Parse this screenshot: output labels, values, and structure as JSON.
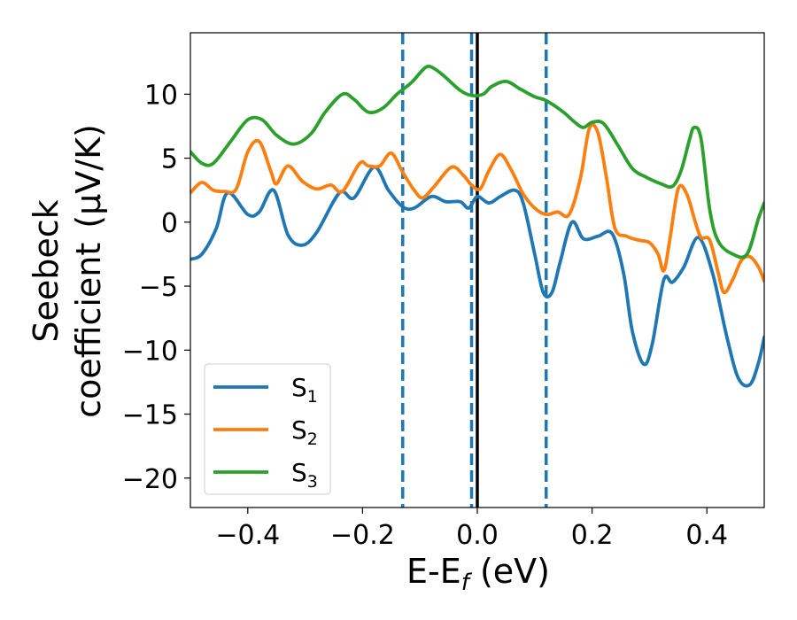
{
  "chart_data": {
    "type": "line",
    "title": "",
    "xlabel": {
      "main": "E-E",
      "sub": "f",
      "unit": " (eV)"
    },
    "ylabel": {
      "line1": "Seebeck",
      "line2": "coefficient",
      "unit": "(μV/K)"
    },
    "xlim": [
      -0.5,
      0.5
    ],
    "ylim": [
      -22.3,
      14.8
    ],
    "xticks": [
      -0.4,
      -0.2,
      0.0,
      0.2,
      0.4
    ],
    "xtick_labels": [
      "−0.4",
      "−0.2",
      "0.0",
      "0.2",
      "0.4"
    ],
    "yticks": [
      10,
      5,
      0,
      -5,
      -10,
      -15,
      -20
    ],
    "ytick_labels": [
      "10",
      "5",
      "0",
      "−5",
      "−10",
      "−15",
      "−20"
    ],
    "grid": false,
    "legend_position": "lower-left",
    "vlines": [
      {
        "x": 0.0,
        "style": "solid",
        "color": "#000000"
      },
      {
        "x": -0.13,
        "style": "dashed",
        "color": "#1f77b4"
      },
      {
        "x": -0.01,
        "style": "dashed",
        "color": "#1f77b4"
      },
      {
        "x": 0.12,
        "style": "dashed",
        "color": "#1f77b4"
      }
    ],
    "series": [
      {
        "name": "S",
        "sub": "1",
        "color": "#1f77b4",
        "points": [
          [
            -0.5,
            -2.9
          ],
          [
            -0.48,
            -2.5
          ],
          [
            -0.455,
            -0.5
          ],
          [
            -0.435,
            2.3
          ],
          [
            -0.4,
            0.6
          ],
          [
            -0.38,
            0.8
          ],
          [
            -0.355,
            2.5
          ],
          [
            -0.33,
            -1.0
          ],
          [
            -0.305,
            -1.8
          ],
          [
            -0.28,
            -0.8
          ],
          [
            -0.24,
            2.3
          ],
          [
            -0.215,
            1.9
          ],
          [
            -0.18,
            4.3
          ],
          [
            -0.155,
            2.5
          ],
          [
            -0.13,
            1.2
          ],
          [
            -0.11,
            1.1
          ],
          [
            -0.08,
            2.0
          ],
          [
            -0.055,
            1.6
          ],
          [
            -0.03,
            1.6
          ],
          [
            -0.015,
            1.1
          ],
          [
            0.0,
            2.0
          ],
          [
            0.02,
            1.5
          ],
          [
            0.04,
            2.0
          ],
          [
            0.065,
            2.5
          ],
          [
            0.08,
            1.5
          ],
          [
            0.1,
            -2.5
          ],
          [
            0.115,
            -5.5
          ],
          [
            0.13,
            -5.5
          ],
          [
            0.145,
            -3.0
          ],
          [
            0.165,
            0.0
          ],
          [
            0.185,
            -1.3
          ],
          [
            0.21,
            -1.1
          ],
          [
            0.235,
            -0.9
          ],
          [
            0.255,
            -4.0
          ],
          [
            0.27,
            -8.5
          ],
          [
            0.29,
            -11.1
          ],
          [
            0.305,
            -9.5
          ],
          [
            0.325,
            -4.5
          ],
          [
            0.34,
            -4.7
          ],
          [
            0.36,
            -3.5
          ],
          [
            0.385,
            -1.2
          ],
          [
            0.41,
            -4.0
          ],
          [
            0.435,
            -9.0
          ],
          [
            0.455,
            -12.2
          ],
          [
            0.475,
            -12.7
          ],
          [
            0.49,
            -11.0
          ],
          [
            0.5,
            -9.0
          ]
        ]
      },
      {
        "name": "S",
        "sub": "2",
        "color": "#ff7f0e",
        "points": [
          [
            -0.5,
            2.3
          ],
          [
            -0.48,
            3.1
          ],
          [
            -0.46,
            2.5
          ],
          [
            -0.44,
            2.4
          ],
          [
            -0.42,
            2.6
          ],
          [
            -0.4,
            5.5
          ],
          [
            -0.38,
            6.3
          ],
          [
            -0.36,
            4.0
          ],
          [
            -0.35,
            3.0
          ],
          [
            -0.33,
            4.4
          ],
          [
            -0.305,
            3.2
          ],
          [
            -0.28,
            2.6
          ],
          [
            -0.255,
            2.9
          ],
          [
            -0.235,
            2.4
          ],
          [
            -0.205,
            4.6
          ],
          [
            -0.19,
            4.4
          ],
          [
            -0.17,
            4.4
          ],
          [
            -0.15,
            5.4
          ],
          [
            -0.13,
            3.9
          ],
          [
            -0.11,
            2.5
          ],
          [
            -0.095,
            1.9
          ],
          [
            -0.075,
            2.8
          ],
          [
            -0.045,
            4.3
          ],
          [
            -0.025,
            3.7
          ],
          [
            -0.01,
            2.9
          ],
          [
            0.005,
            2.6
          ],
          [
            0.02,
            4.0
          ],
          [
            0.04,
            5.3
          ],
          [
            0.06,
            4.0
          ],
          [
            0.08,
            2.2
          ],
          [
            0.1,
            1.1
          ],
          [
            0.12,
            0.6
          ],
          [
            0.14,
            0.8
          ],
          [
            0.16,
            0.6
          ],
          [
            0.18,
            3.5
          ],
          [
            0.195,
            7.3
          ],
          [
            0.21,
            7.0
          ],
          [
            0.225,
            3.5
          ],
          [
            0.24,
            -0.5
          ],
          [
            0.26,
            -1.1
          ],
          [
            0.28,
            -1.4
          ],
          [
            0.3,
            -1.6
          ],
          [
            0.315,
            -2.5
          ],
          [
            0.325,
            -3.8
          ],
          [
            0.335,
            -1.5
          ],
          [
            0.35,
            2.6
          ],
          [
            0.365,
            2.2
          ],
          [
            0.38,
            0.0
          ],
          [
            0.39,
            -1.2
          ],
          [
            0.405,
            -1.4
          ],
          [
            0.42,
            -4.0
          ],
          [
            0.43,
            -5.5
          ],
          [
            0.445,
            -4.5
          ],
          [
            0.46,
            -3.0
          ],
          [
            0.475,
            -2.7
          ],
          [
            0.49,
            -3.5
          ],
          [
            0.5,
            -4.6
          ]
        ]
      },
      {
        "name": "S",
        "sub": "3",
        "color": "#2ca02c",
        "points": [
          [
            -0.5,
            5.5
          ],
          [
            -0.48,
            4.6
          ],
          [
            -0.46,
            4.6
          ],
          [
            -0.43,
            6.3
          ],
          [
            -0.4,
            8.0
          ],
          [
            -0.375,
            8.0
          ],
          [
            -0.35,
            6.8
          ],
          [
            -0.32,
            6.1
          ],
          [
            -0.29,
            6.9
          ],
          [
            -0.265,
            8.6
          ],
          [
            -0.235,
            10.0
          ],
          [
            -0.215,
            9.6
          ],
          [
            -0.19,
            8.6
          ],
          [
            -0.165,
            8.9
          ],
          [
            -0.14,
            10.0
          ],
          [
            -0.115,
            10.9
          ],
          [
            -0.09,
            12.1
          ],
          [
            -0.075,
            12.0
          ],
          [
            -0.055,
            11.3
          ],
          [
            -0.03,
            10.3
          ],
          [
            -0.01,
            9.9
          ],
          [
            0.01,
            10.0
          ],
          [
            0.025,
            10.6
          ],
          [
            0.05,
            11.0
          ],
          [
            0.075,
            10.4
          ],
          [
            0.1,
            9.8
          ],
          [
            0.12,
            9.5
          ],
          [
            0.15,
            8.6
          ],
          [
            0.17,
            7.8
          ],
          [
            0.185,
            7.4
          ],
          [
            0.2,
            7.8
          ],
          [
            0.22,
            7.7
          ],
          [
            0.245,
            6.0
          ],
          [
            0.27,
            4.2
          ],
          [
            0.295,
            3.5
          ],
          [
            0.32,
            3.0
          ],
          [
            0.34,
            2.8
          ],
          [
            0.355,
            4.0
          ],
          [
            0.37,
            6.5
          ],
          [
            0.378,
            7.4
          ],
          [
            0.39,
            6.5
          ],
          [
            0.405,
            1.0
          ],
          [
            0.42,
            -1.5
          ],
          [
            0.445,
            -2.5
          ],
          [
            0.47,
            -2.5
          ],
          [
            0.49,
            0.3
          ],
          [
            0.5,
            1.5
          ]
        ]
      }
    ]
  }
}
